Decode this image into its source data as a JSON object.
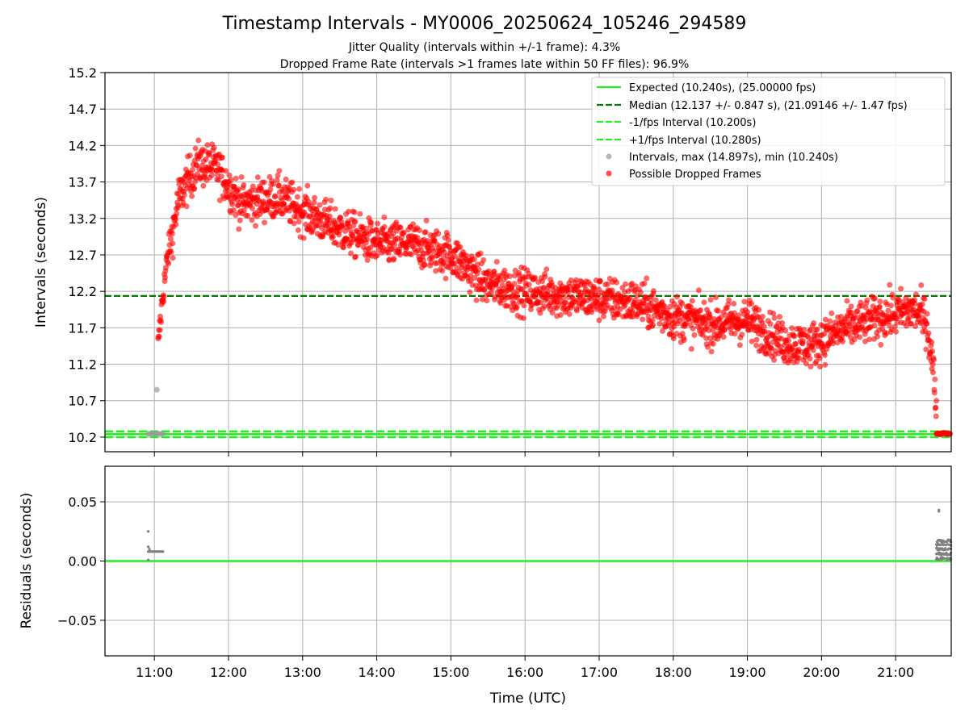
{
  "figure": {
    "title": "Timestamp Intervals - MY0006_20250624_105246_294589",
    "subtitle_1": "Jitter Quality (intervals within +/-1 frame): 4.3%",
    "subtitle_2": "Dropped Frame Rate (intervals >1 frames late within 50 FF files): 96.9%"
  },
  "colors": {
    "expected": "#22ee22",
    "median": "#007700",
    "interval": "#22ee22",
    "dropped": "#ff0000",
    "normal": "#999999",
    "residual": "#808080"
  },
  "chart_data": [
    {
      "type": "scatter",
      "ylabel": "Intervals (seconds)",
      "xlabel": "",
      "xlim": [
        "10:20",
        "21:45"
      ],
      "ylim": [
        10.0,
        15.2
      ],
      "x_ticks": [
        "11:00",
        "12:00",
        "13:00",
        "14:00",
        "15:00",
        "16:00",
        "17:00",
        "18:00",
        "19:00",
        "20:00",
        "21:00"
      ],
      "y_ticks": [
        "10.2",
        "10.7",
        "11.2",
        "11.7",
        "12.2",
        "12.7",
        "13.2",
        "13.7",
        "14.2",
        "14.7",
        "15.2"
      ],
      "grid": true,
      "legend_position": "top-right",
      "legend": [
        "Expected (10.240s), (25.00000 fps)",
        "Median (12.137 +/- 0.847 s), (21.09146 +/- 1.47 fps)",
        "-1/fps Interval (10.200s)",
        "+1/fps Interval (10.280s)",
        "Intervals, max (14.897s), min (10.240s)",
        "Possible Dropped Frames"
      ],
      "reference_lines": {
        "expected": 10.24,
        "median": 12.137,
        "minus_interval": 10.2,
        "plus_interval": 10.28
      },
      "dropped_frames_trend": {
        "x": [
          "11:03",
          "11:06",
          "11:10",
          "11:20",
          "11:35",
          "11:50",
          "12:10",
          "12:40",
          "13:00",
          "13:30",
          "14:00",
          "14:30",
          "15:00",
          "15:30",
          "16:00",
          "16:30",
          "17:00",
          "17:30",
          "18:00",
          "18:30",
          "19:00",
          "19:30",
          "19:50",
          "20:20",
          "20:50",
          "21:15",
          "21:25",
          "21:30",
          "21:33"
        ],
        "y": [
          11.45,
          12.0,
          12.6,
          13.5,
          13.95,
          13.9,
          13.4,
          13.5,
          13.3,
          13.05,
          12.85,
          12.85,
          12.7,
          12.3,
          12.2,
          12.15,
          12.1,
          12.05,
          11.85,
          11.75,
          11.8,
          11.5,
          11.45,
          11.7,
          11.85,
          11.95,
          11.8,
          11.2,
          10.6
        ],
        "spread": 0.32
      },
      "gray_points": {
        "x": [
          "10:55",
          "10:57",
          "10:59",
          "11:01",
          "11:03",
          "11:05",
          "11:07",
          "11:02"
        ],
        "y": [
          10.248,
          10.248,
          10.248,
          10.248,
          10.248,
          10.248,
          10.248,
          10.85
        ]
      },
      "end_cluster": {
        "x_range": [
          "21:33",
          "21:44"
        ],
        "y": 10.25
      }
    },
    {
      "type": "scatter",
      "ylabel": "Residuals (seconds)",
      "xlabel": "Time (UTC)",
      "xlim": [
        "10:20",
        "21:45"
      ],
      "ylim": [
        -0.08,
        0.08
      ],
      "x_ticks": [
        "11:00",
        "12:00",
        "13:00",
        "14:00",
        "15:00",
        "16:00",
        "17:00",
        "18:00",
        "19:00",
        "20:00",
        "21:00"
      ],
      "y_ticks": [
        "0.05",
        "0.00",
        "−0.05"
      ],
      "y_tick_values": [
        0.05,
        0.0,
        -0.05
      ],
      "grid": true,
      "zero_line": 0.0,
      "points": {
        "x": [
          "10:55",
          "10:56",
          "10:57",
          "10:58",
          "10:59",
          "11:00",
          "11:01",
          "11:02",
          "11:03",
          "11:04",
          "11:05",
          "11:06",
          "11:07",
          "10:55",
          "10:55",
          "10:56",
          "10:55",
          "21:35",
          "21:35"
        ],
        "y": [
          0.008,
          0.008,
          0.008,
          0.008,
          0.008,
          0.008,
          0.008,
          0.008,
          0.008,
          0.008,
          0.008,
          0.008,
          0.008,
          0.025,
          0.012,
          0.01,
          0.001,
          0.043,
          0.042
        ]
      },
      "end_cluster": {
        "x_range": [
          "21:33",
          "21:45"
        ],
        "y_levels": [
          0.002,
          0.006,
          0.01,
          0.014,
          0.017
        ]
      }
    }
  ]
}
